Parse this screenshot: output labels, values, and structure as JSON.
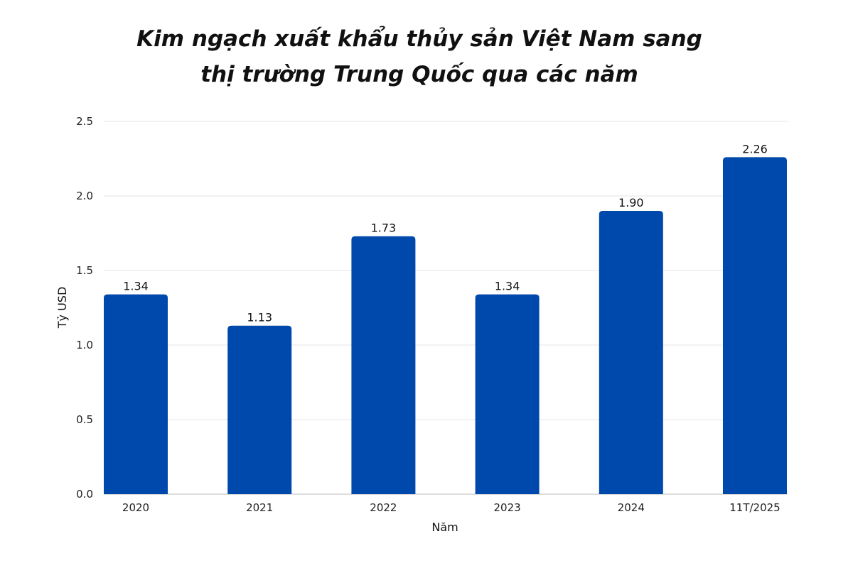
{
  "chart_data": {
    "type": "bar",
    "title_lines": [
      "Kim ngạch xuất khẩu thủy sản Việt Nam sang",
      "thị trường Trung Quốc qua các năm"
    ],
    "xlabel": "Năm",
    "ylabel": "Tỷ USD",
    "categories": [
      "2020",
      "2021",
      "2022",
      "2023",
      "2024",
      "11T/2025"
    ],
    "values": [
      1.34,
      1.13,
      1.73,
      1.34,
      1.9,
      2.26
    ],
    "value_labels": [
      "1.34",
      "1.13",
      "1.73",
      "1.34",
      "1.90",
      "2.26"
    ],
    "ylim": [
      0,
      2.5
    ],
    "yticks": [
      "0.0",
      "0.5",
      "1.0",
      "1.5",
      "2.0",
      "2.5"
    ],
    "grid": true,
    "bar_color": "#0049AC",
    "grid_color": "#E6E6E6"
  }
}
